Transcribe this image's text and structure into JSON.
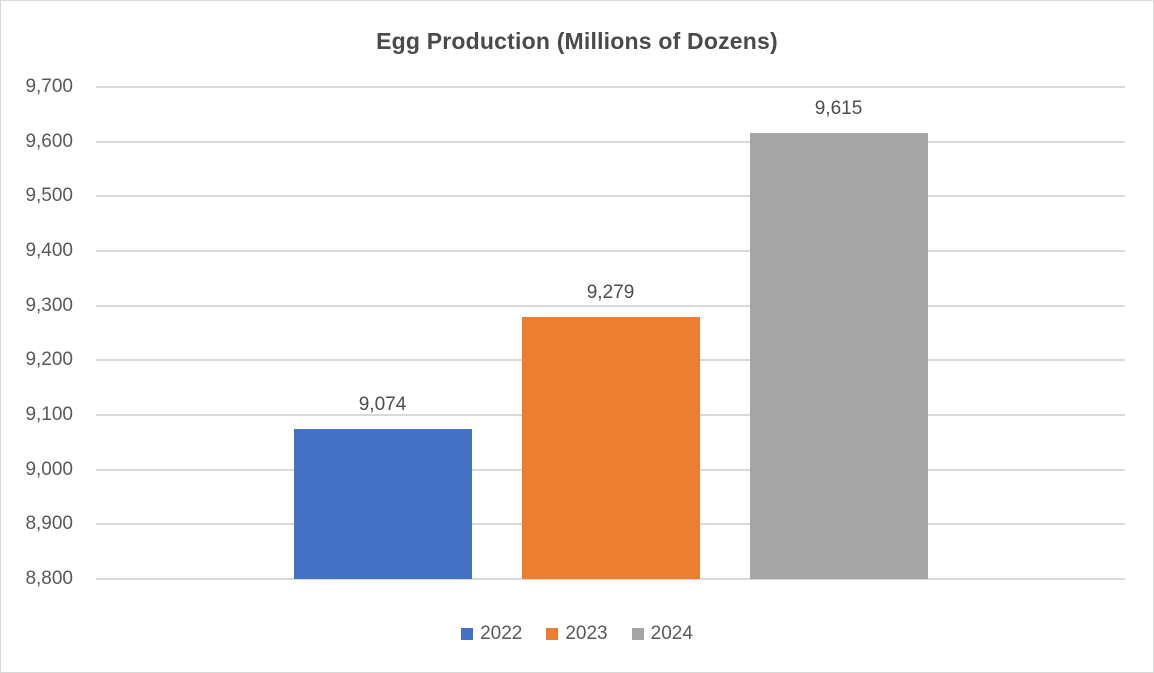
{
  "chart_data": {
    "type": "bar",
    "title": "Egg Production (Millions of Dozens)",
    "categories": [
      "2022",
      "2023",
      "2024"
    ],
    "series": [
      {
        "name": "2022",
        "value": 9074,
        "label": "9,074",
        "color": "#4472C4"
      },
      {
        "name": "2023",
        "value": 9279,
        "label": "9,279",
        "color": "#ED7D31"
      },
      {
        "name": "2024",
        "value": 9615,
        "label": "9,615",
        "color": "#A5A5A5"
      }
    ],
    "xlabel": "",
    "ylabel": "",
    "ylim": [
      8800,
      9700
    ],
    "ytick_interval": 100,
    "ytick_labels": [
      "8,800",
      "8,900",
      "9,000",
      "9,100",
      "9,200",
      "9,300",
      "9,400",
      "9,500",
      "9,600",
      "9,700"
    ],
    "grid": true,
    "legend_position": "bottom",
    "legend_entries": [
      "2022",
      "2023",
      "2024"
    ],
    "colors": {
      "bar_2022": "#4472C4",
      "bar_2023": "#ED7D31",
      "bar_2024": "#A5A5A5",
      "gridline": "#D9D9D9",
      "axis_text": "#595959",
      "data_label_text": "#4D4D4D",
      "title_text": "#4A4A4A",
      "legend_text": "#595959",
      "background": "#FFFFFF",
      "frame_border": "#D9D9D9"
    }
  }
}
